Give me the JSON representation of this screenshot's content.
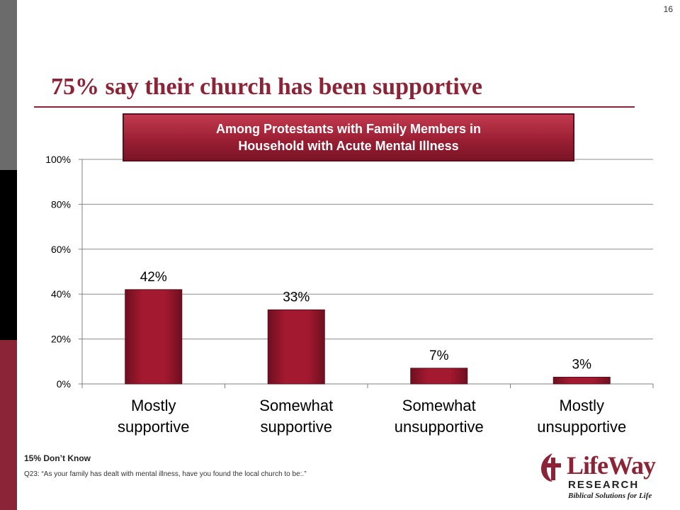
{
  "page_number": "16",
  "title": "75% say their church has been supportive",
  "banner": {
    "line1": "Among Protestants with Family Members in",
    "line2": "Household with Acute Mental Illness"
  },
  "chart_data": {
    "type": "bar",
    "categories": [
      [
        "Mostly",
        "supportive"
      ],
      [
        "Somewhat",
        "supportive"
      ],
      [
        "Somewhat",
        "unsupportive"
      ],
      [
        "Mostly",
        "unsupportive"
      ]
    ],
    "values": [
      42,
      33,
      7,
      3
    ],
    "value_labels": [
      "42%",
      "33%",
      "7%",
      "3%"
    ],
    "ylim": [
      0,
      100
    ],
    "yticks": [
      0,
      20,
      40,
      60,
      80,
      100
    ],
    "ytick_labels": [
      "0%",
      "20%",
      "40%",
      "60%",
      "80%",
      "100%"
    ],
    "grid": true,
    "bar_color": "#a3192f"
  },
  "footnote": "15% Don’t Know",
  "question": "Q23: “As your family has dealt with mental illness, have you found the local church to be:.”",
  "logo": {
    "word": "LifeWay",
    "research": "RESEARCH",
    "tagline": "Biblical Solutions for Life"
  },
  "colors": {
    "accent": "#8b2436"
  }
}
